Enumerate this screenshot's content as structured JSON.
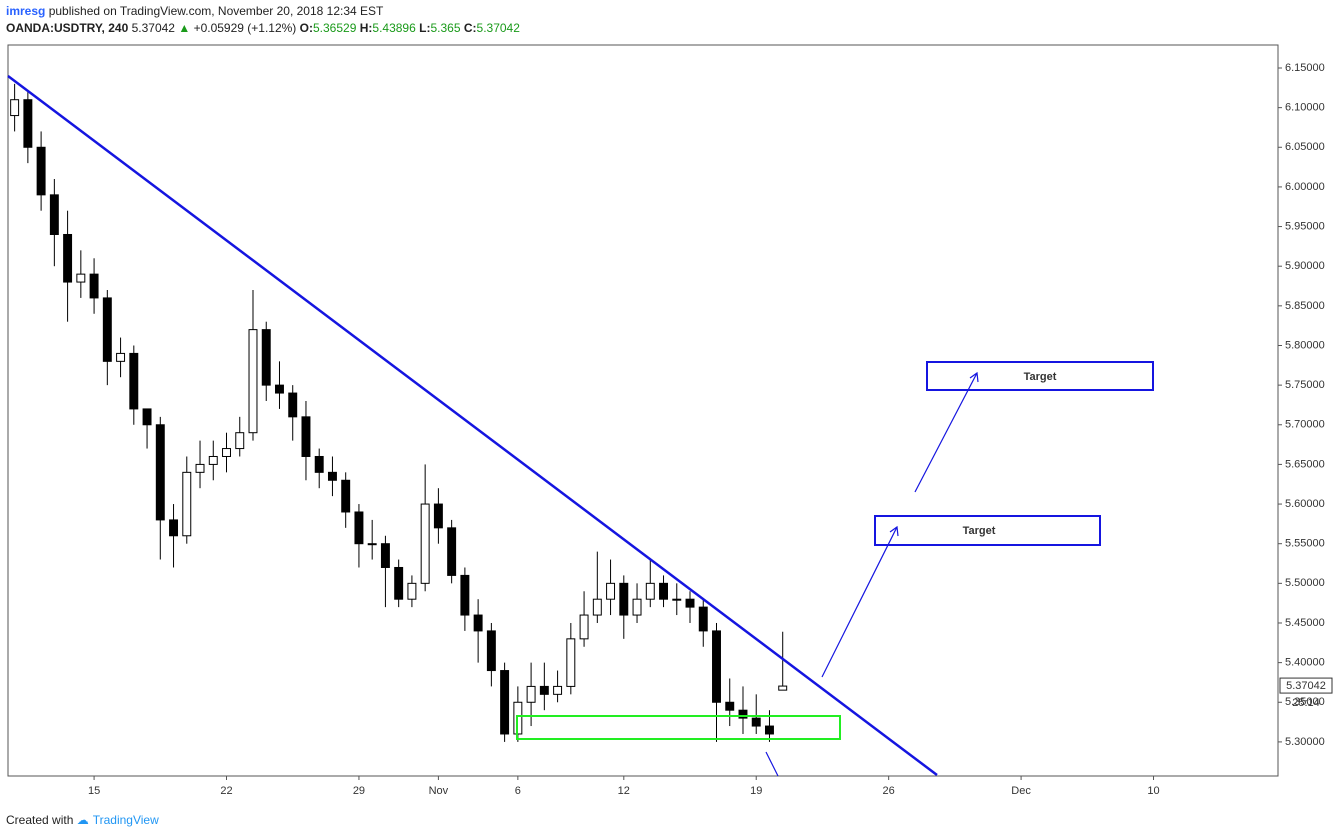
{
  "header": {
    "author": "imresg",
    "published": "published on TradingView.com, November 20, 2018 12:34 EST",
    "symbol": "OANDA:USDTRY, 240",
    "change": "+0.05929 (+1.12%)",
    "ohlc_labels": [
      "O:",
      "H:",
      "L:",
      "C:"
    ]
  },
  "chart_data": {
    "type": "candlestick",
    "x": [
      -3,
      -2.5,
      -2,
      -1.5,
      -1,
      -0.5,
      0,
      0.5,
      1,
      1.5,
      2,
      2.5,
      3,
      3.5,
      4,
      4.5,
      5,
      5.5,
      6,
      6.5,
      7,
      7.5,
      8,
      8.5,
      9,
      9.5,
      10,
      10.5,
      11,
      11.5,
      12,
      12.5,
      13,
      13.5,
      14,
      14.5,
      15,
      15.5,
      16,
      16.5,
      17,
      17.5,
      18,
      18.5,
      19,
      19.5,
      20,
      20.5,
      21,
      21.5,
      22,
      22.5,
      23,
      23.5,
      24,
      24.5,
      25,
      25.5,
      26
    ],
    "open": [
      6.09,
      6.11,
      6.05,
      5.99,
      5.94,
      5.88,
      5.89,
      5.86,
      5.78,
      5.79,
      5.72,
      5.7,
      5.58,
      5.56,
      5.64,
      5.65,
      5.66,
      5.67,
      5.69,
      5.82,
      5.75,
      5.74,
      5.71,
      5.66,
      5.64,
      5.63,
      5.59,
      5.55,
      5.55,
      5.52,
      5.48,
      5.5,
      5.6,
      5.57,
      5.51,
      5.46,
      5.44,
      5.39,
      5.31,
      5.35,
      5.37,
      5.36,
      5.37,
      5.43,
      5.46,
      5.48,
      5.5,
      5.46,
      5.48,
      5.5,
      5.48,
      5.48,
      5.47,
      5.44,
      5.35,
      5.34,
      5.33,
      5.32,
      5.36529
    ],
    "high": [
      6.13,
      6.12,
      6.07,
      6.01,
      5.97,
      5.92,
      5.91,
      5.87,
      5.81,
      5.8,
      5.72,
      5.71,
      5.6,
      5.66,
      5.68,
      5.68,
      5.69,
      5.71,
      5.87,
      5.83,
      5.78,
      5.75,
      5.73,
      5.67,
      5.66,
      5.64,
      5.6,
      5.58,
      5.56,
      5.53,
      5.51,
      5.65,
      5.62,
      5.58,
      5.52,
      5.48,
      5.45,
      5.4,
      5.37,
      5.4,
      5.4,
      5.39,
      5.45,
      5.49,
      5.54,
      5.53,
      5.51,
      5.5,
      5.53,
      5.51,
      5.5,
      5.49,
      5.48,
      5.45,
      5.38,
      5.37,
      5.36,
      5.34,
      5.43896
    ],
    "low": [
      6.07,
      6.03,
      5.97,
      5.9,
      5.83,
      5.86,
      5.84,
      5.75,
      5.76,
      5.7,
      5.67,
      5.53,
      5.52,
      5.55,
      5.62,
      5.63,
      5.64,
      5.66,
      5.68,
      5.73,
      5.72,
      5.68,
      5.63,
      5.62,
      5.61,
      5.57,
      5.52,
      5.53,
      5.47,
      5.47,
      5.47,
      5.49,
      5.55,
      5.5,
      5.44,
      5.4,
      5.37,
      5.3,
      5.3,
      5.32,
      5.34,
      5.35,
      5.36,
      5.42,
      5.45,
      5.46,
      5.43,
      5.45,
      5.47,
      5.47,
      5.46,
      5.45,
      5.42,
      5.3,
      5.32,
      5.31,
      5.31,
      5.3,
      5.365
    ],
    "close": [
      6.11,
      6.05,
      5.99,
      5.94,
      5.88,
      5.89,
      5.86,
      5.78,
      5.79,
      5.72,
      5.7,
      5.58,
      5.56,
      5.64,
      5.65,
      5.66,
      5.67,
      5.69,
      5.82,
      5.75,
      5.74,
      5.71,
      5.66,
      5.64,
      5.63,
      5.59,
      5.55,
      5.55,
      5.52,
      5.48,
      5.5,
      5.6,
      5.57,
      5.51,
      5.46,
      5.44,
      5.39,
      5.31,
      5.35,
      5.37,
      5.36,
      5.37,
      5.43,
      5.46,
      5.48,
      5.5,
      5.46,
      5.48,
      5.5,
      5.48,
      5.48,
      5.47,
      5.44,
      5.35,
      5.34,
      5.33,
      5.32,
      5.31,
      5.37042
    ],
    "xlim": [
      -3.25,
      44.7
    ],
    "xticks": [
      {
        "value": 0,
        "label": "15"
      },
      {
        "value": 5,
        "label": "22"
      },
      {
        "value": 10,
        "label": "29"
      },
      {
        "value": 13,
        "label": "Nov"
      },
      {
        "value": 16,
        "label": "6"
      },
      {
        "value": 20,
        "label": "12"
      },
      {
        "value": 25,
        "label": "19"
      },
      {
        "value": 30,
        "label": "26"
      },
      {
        "value": 35,
        "label": "Dec"
      },
      {
        "value": 40,
        "label": "10"
      }
    ],
    "ylim": [
      5.257,
      6.179
    ],
    "yticks": [
      {
        "value": 5.3,
        "label": "5.30000"
      },
      {
        "value": 5.35,
        "label": "5.35000"
      },
      {
        "value": 5.4,
        "label": "5.40000"
      },
      {
        "value": 5.45,
        "label": "5.45000"
      },
      {
        "value": 5.5,
        "label": "5.50000"
      },
      {
        "value": 5.55,
        "label": "5.55000"
      },
      {
        "value": 5.6,
        "label": "5.60000"
      },
      {
        "value": 5.65,
        "label": "5.65000"
      },
      {
        "value": 5.7,
        "label": "5.70000"
      },
      {
        "value": 5.75,
        "label": "5.75000"
      },
      {
        "value": 5.8,
        "label": "5.80000"
      },
      {
        "value": 5.85,
        "label": "5.85000"
      },
      {
        "value": 5.9,
        "label": "5.90000"
      },
      {
        "value": 5.95,
        "label": "5.95000"
      },
      {
        "value": 6.0,
        "label": "6.00000"
      },
      {
        "value": 6.05,
        "label": "6.05000"
      },
      {
        "value": 6.1,
        "label": "6.10000"
      },
      {
        "value": 6.15,
        "label": "6.15000"
      }
    ],
    "up_color": "#ffffff",
    "down_color": "#000000",
    "wick_color": "#000000",
    "annotations": [
      "Target",
      "Target"
    ],
    "countdown": "25:14"
  },
  "footer": {
    "created": "Created with",
    "brand": "TradingView"
  }
}
